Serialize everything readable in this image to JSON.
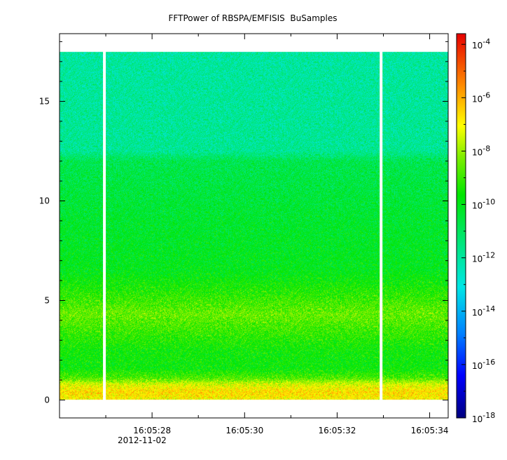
{
  "chart_data": {
    "type": "heatmap",
    "title": "FFTPower of RBSPA/EMFISIS  BuSamples",
    "xlabel": "",
    "ylabel": "",
    "x": {
      "tick_labels": [
        "16:05:28",
        "16:05:30",
        "16:05:32",
        "16:05:34"
      ],
      "tick_values_s": [
        28,
        30,
        32,
        34
      ],
      "minor_tick_values_s": [
        27,
        29,
        31,
        33
      ],
      "date_label": "2012-11-02",
      "range_s": [
        26.0,
        34.4
      ]
    },
    "y": {
      "tick_labels": [
        "0",
        "5",
        "10",
        "15"
      ],
      "tick_values": [
        0,
        5,
        10,
        15
      ],
      "range": [
        -0.9,
        18.4
      ]
    },
    "colorbar": {
      "scale": "log",
      "range_exp": [
        -18,
        -3.6
      ],
      "tick_labels": [
        {
          "base": "10",
          "exp": "-18",
          "value_exp": -18
        },
        {
          "base": "10",
          "exp": "-16",
          "value_exp": -16
        },
        {
          "base": "10",
          "exp": "-14",
          "value_exp": -14
        },
        {
          "base": "10",
          "exp": "-12",
          "value_exp": -12
        },
        {
          "base": "10",
          "exp": "-10",
          "value_exp": -10
        },
        {
          "base": "10",
          "exp": "-8",
          "value_exp": -8
        },
        {
          "base": "10",
          "exp": "-6",
          "value_exp": -6
        },
        {
          "base": "10",
          "exp": "-4",
          "value_exp": -4
        }
      ]
    },
    "data_extent": {
      "time_s": [
        26.0,
        34.4
      ],
      "freq": [
        0.0,
        17.5
      ]
    },
    "gaps_s": [
      26.97,
      32.95
    ],
    "frequency_profile_log10_power": [
      {
        "f": 0.0,
        "v": -7.0
      },
      {
        "f": 0.4,
        "v": -6.6
      },
      {
        "f": 0.8,
        "v": -7.4
      },
      {
        "f": 1.1,
        "v": -8.8
      },
      {
        "f": 1.6,
        "v": -9.7
      },
      {
        "f": 2.5,
        "v": -9.6
      },
      {
        "f": 3.5,
        "v": -9.0
      },
      {
        "f": 4.3,
        "v": -8.5
      },
      {
        "f": 5.3,
        "v": -9.2
      },
      {
        "f": 6.5,
        "v": -10.0
      },
      {
        "f": 9.0,
        "v": -10.3
      },
      {
        "f": 12.0,
        "v": -10.8
      },
      {
        "f": 12.5,
        "v": -11.8
      },
      {
        "f": 17.5,
        "v": -12.0
      }
    ]
  }
}
